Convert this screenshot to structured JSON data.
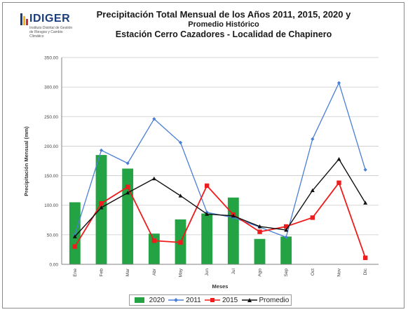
{
  "logo": {
    "name": "IDIGER",
    "subtitle": "Instituto Distrital de Gestión de Riesgos y Cambio Climático"
  },
  "colors": {
    "bar2020": "#23a343",
    "line2011": "#4a7fd6",
    "line2015": "#ee1c1c",
    "promedio": "#111111",
    "grid": "#c9c9c9",
    "axis": "#808080"
  },
  "chart_data": {
    "type": "bar",
    "title_line1": "Precipitación Total Mensual de los Años 2011, 2015, 2020 y",
    "title_line2": "Promedio Histórico",
    "title_line3": "Estación Cerro Cazadores - Localidad de Chapinero",
    "xlabel": "Meses",
    "ylabel": "Precipitación Mensual (mm)",
    "ylim": [
      0,
      350
    ],
    "yticks": [
      "0.00",
      "50.00",
      "100.00",
      "150.00",
      "200.00",
      "250.00",
      "300.00",
      "350.00"
    ],
    "categories": [
      "Ene",
      "Feb",
      "Mar",
      "Abr",
      "May",
      "Jun",
      "Jul",
      "Ago",
      "Sep",
      "Oct",
      "Nov",
      "Dic"
    ],
    "grid": true,
    "legend_position": "bottom",
    "series": [
      {
        "name": "2020",
        "kind": "bar",
        "values": [
          105,
          185,
          162,
          52,
          76,
          86,
          113,
          43,
          47,
          null,
          null,
          null
        ]
      },
      {
        "name": "2011",
        "kind": "line",
        "marker": "diamond",
        "values": [
          50,
          193,
          171,
          246,
          206,
          88,
          79,
          63,
          46,
          212,
          307,
          160
        ]
      },
      {
        "name": "2015",
        "kind": "line",
        "marker": "square",
        "values": [
          30,
          103,
          131,
          40,
          37,
          133,
          84,
          55,
          64,
          79,
          138,
          11
        ]
      },
      {
        "name": "Promedio",
        "kind": "line",
        "marker": "triangle",
        "values": [
          47,
          96,
          121,
          145,
          116,
          85,
          82,
          64,
          58,
          125,
          178,
          104
        ]
      }
    ]
  }
}
